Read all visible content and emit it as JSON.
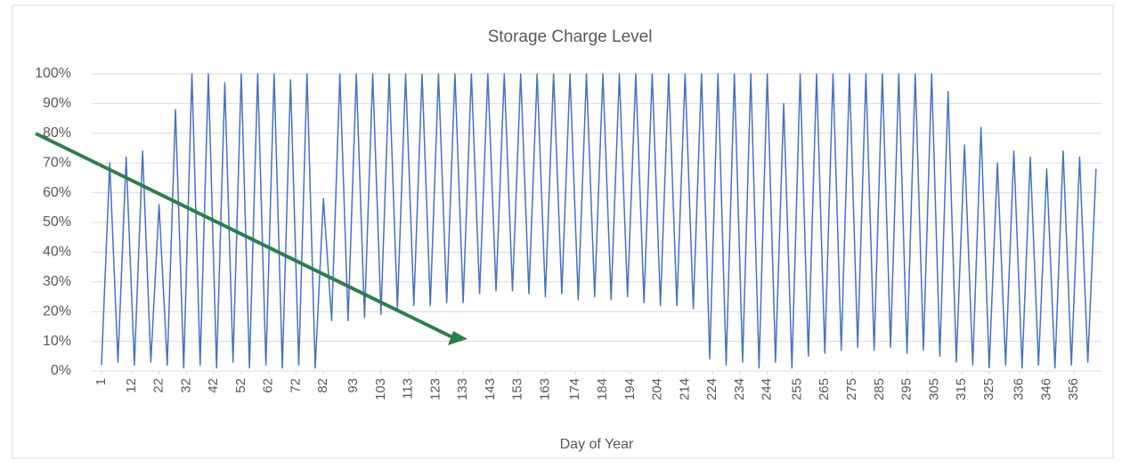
{
  "chart_data": {
    "type": "line",
    "title": "Storage Charge Level",
    "x_label": "Day of Year",
    "xlim": [
      1,
      366
    ],
    "xticks": [
      1,
      12,
      22,
      32,
      42,
      52,
      62,
      72,
      82,
      93,
      103,
      113,
      123,
      133,
      143,
      153,
      163,
      174,
      184,
      194,
      204,
      214,
      224,
      234,
      244,
      255,
      265,
      275,
      285,
      295,
      305,
      315,
      325,
      336,
      346,
      356
    ],
    "ylim": [
      0,
      100
    ],
    "yticks": [
      {
        "value": 0,
        "label": "0%"
      },
      {
        "value": 10,
        "label": "10%"
      },
      {
        "value": 20,
        "label": "20%"
      },
      {
        "value": 30,
        "label": "30%"
      },
      {
        "value": 40,
        "label": "40%"
      },
      {
        "value": 50,
        "label": "50%"
      },
      {
        "value": 60,
        "label": "60%"
      },
      {
        "value": 70,
        "label": "70%"
      },
      {
        "value": 80,
        "label": "80%"
      },
      {
        "value": 90,
        "label": "90%"
      },
      {
        "value": 100,
        "label": "100%"
      }
    ],
    "grid": true,
    "x": [
      1,
      4,
      7,
      10,
      13,
      16,
      19,
      22,
      25,
      28,
      31,
      34,
      37,
      40,
      43,
      46,
      49,
      52,
      55,
      58,
      61,
      64,
      67,
      70,
      73,
      76,
      79,
      82,
      85,
      88,
      91,
      94,
      97,
      100,
      103,
      106,
      109,
      112,
      115,
      118,
      121,
      124,
      127,
      130,
      133,
      136,
      139,
      142,
      145,
      148,
      151,
      154,
      157,
      160,
      163,
      166,
      169,
      172,
      175,
      178,
      181,
      184,
      187,
      190,
      193,
      196,
      199,
      202,
      205,
      208,
      211,
      214,
      217,
      220,
      223,
      226,
      229,
      232,
      235,
      238,
      241,
      244,
      247,
      250,
      253,
      256,
      259,
      262,
      265,
      268,
      271,
      274,
      277,
      280,
      283,
      286,
      289,
      292,
      295,
      298,
      301,
      304,
      307,
      310,
      313,
      316,
      319,
      322,
      325,
      328,
      331,
      334,
      337,
      340,
      343,
      346,
      349,
      352,
      355,
      358,
      361,
      364
    ],
    "series": [
      {
        "name": "Storage Charge Level",
        "color": "#4472c4",
        "values": [
          2,
          70,
          3,
          72,
          2,
          74,
          3,
          56,
          2,
          88,
          1,
          100,
          2,
          100,
          1,
          97,
          3,
          100,
          1,
          100,
          2,
          100,
          1,
          98,
          2,
          100,
          1,
          58,
          17,
          100,
          17,
          100,
          18,
          100,
          19,
          100,
          21,
          100,
          22,
          100,
          22,
          100,
          23,
          100,
          23,
          100,
          26,
          100,
          27,
          100,
          27,
          100,
          26,
          100,
          25,
          100,
          26,
          100,
          24,
          100,
          25,
          100,
          24,
          100,
          25,
          100,
          23,
          100,
          22,
          100,
          22,
          100,
          21,
          100,
          4,
          100,
          2,
          100,
          3,
          100,
          1,
          100,
          3,
          90,
          1,
          100,
          5,
          100,
          6,
          100,
          7,
          100,
          8,
          100,
          7,
          100,
          8,
          100,
          6,
          100,
          7,
          100,
          5,
          94,
          3,
          76,
          2,
          82,
          1,
          70,
          2,
          74,
          1,
          72,
          2,
          68,
          1,
          74,
          2,
          72,
          3,
          68
        ]
      }
    ]
  }
}
